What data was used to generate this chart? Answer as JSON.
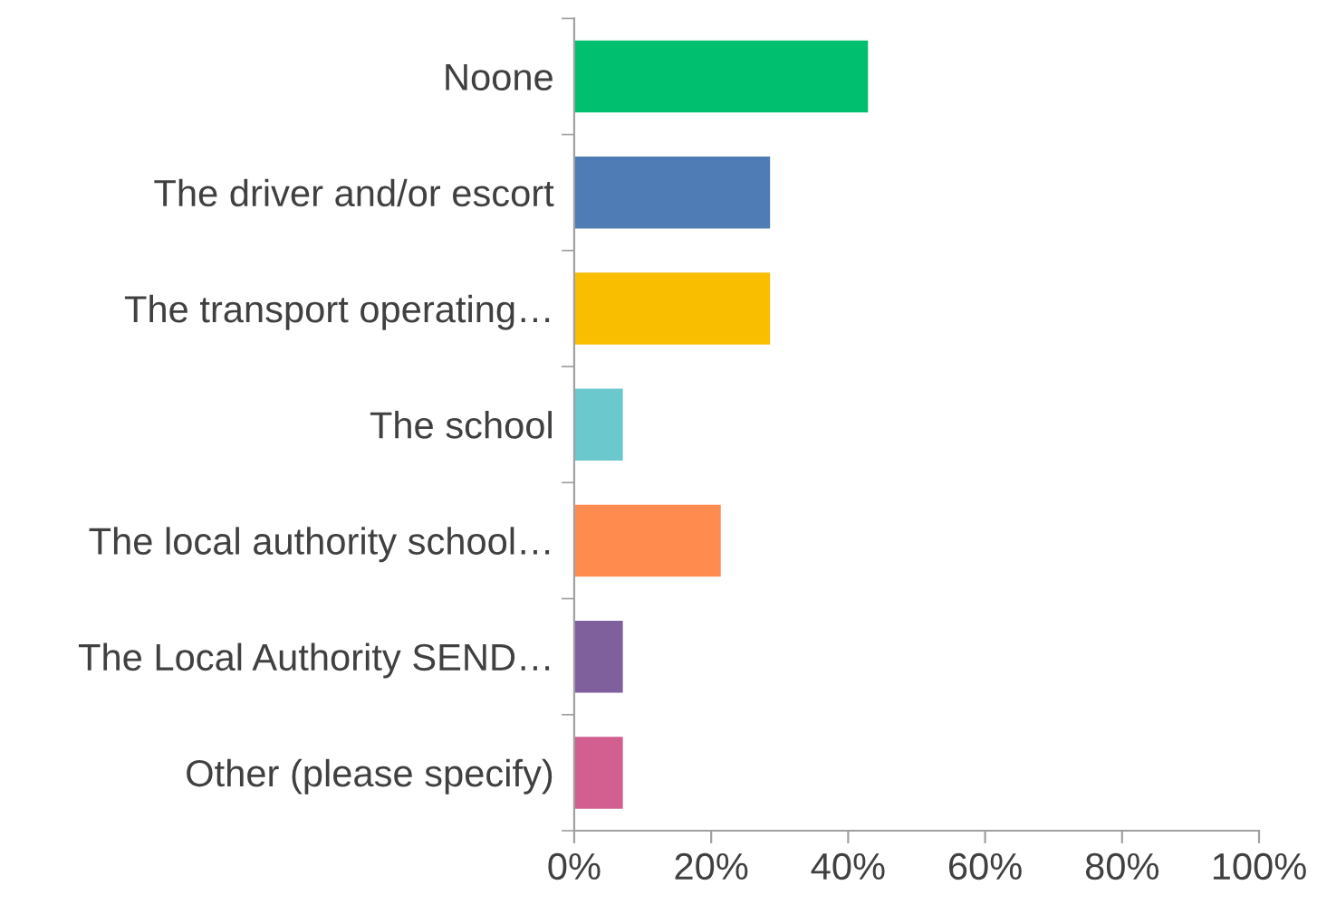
{
  "chart_data": {
    "type": "bar",
    "orientation": "horizontal",
    "categories": [
      "Noone",
      "The driver and/or escort",
      "The transport operating…",
      "The school",
      "The local authority school…",
      "The Local Authority SEND…",
      "Other (please specify)"
    ],
    "values": [
      42.9,
      28.6,
      28.6,
      7.1,
      21.4,
      7.1,
      7.1
    ],
    "colors": [
      "#00bf6f",
      "#507cb6",
      "#f9be00",
      "#6bc8cd",
      "#ff8b4f",
      "#7f5f9c",
      "#d25f90"
    ],
    "xlim": [
      0,
      100
    ],
    "xticks": [
      {
        "value": 0,
        "label": "0%"
      },
      {
        "value": 20,
        "label": "20%"
      },
      {
        "value": 40,
        "label": "40%"
      },
      {
        "value": 60,
        "label": "60%"
      },
      {
        "value": 80,
        "label": "80%"
      },
      {
        "value": 100,
        "label": "100%"
      }
    ],
    "grid": false,
    "legend": false
  }
}
